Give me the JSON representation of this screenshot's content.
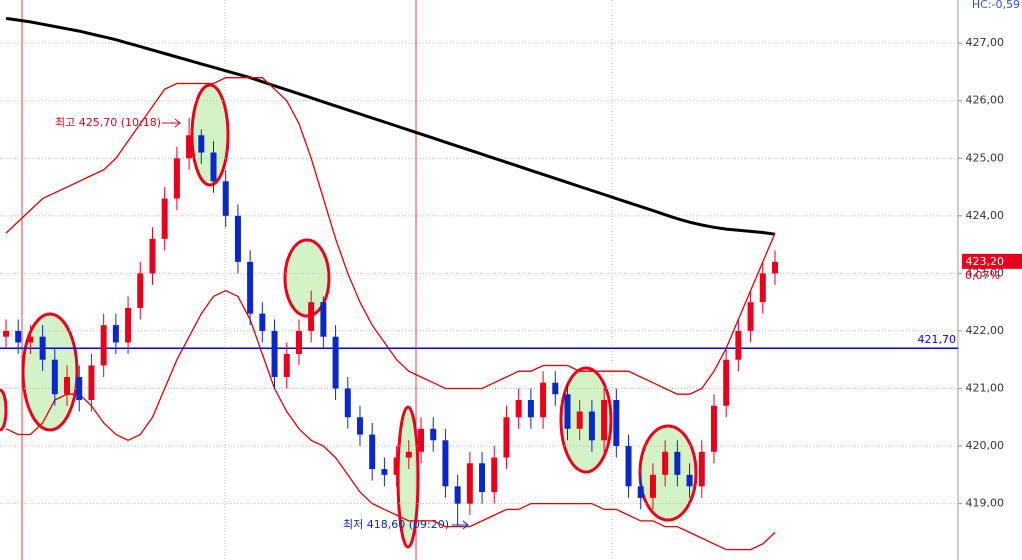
{
  "chart_data": {
    "type": "candlestick",
    "open": [
      421.9,
      422.0,
      421.8,
      421.9,
      421.5,
      420.9,
      421.2,
      420.8,
      421.4,
      422.1,
      421.8,
      422.4,
      423.0,
      423.6,
      424.3,
      425.0,
      425.4,
      425.1,
      424.6,
      424.0,
      423.2,
      422.3,
      422.0,
      421.2,
      421.6,
      422.0,
      422.5,
      421.9,
      421.0,
      420.5,
      420.2,
      419.6,
      419.5,
      419.8,
      419.9,
      420.3,
      420.1,
      419.3,
      419.0,
      419.7,
      419.2,
      419.8,
      420.5,
      420.8,
      420.5,
      421.1,
      420.9,
      420.3,
      420.6,
      420.1,
      420.8,
      420.0,
      419.3,
      419.1,
      419.5,
      419.9,
      419.5,
      419.3,
      419.9,
      420.7,
      421.5,
      422.0,
      422.5,
      423.0
    ],
    "high": [
      422.2,
      422.2,
      422.1,
      422.1,
      421.7,
      421.4,
      421.4,
      421.6,
      422.3,
      422.3,
      422.6,
      423.2,
      423.8,
      424.5,
      425.2,
      425.7,
      425.5,
      425.3,
      424.8,
      424.2,
      423.4,
      422.5,
      422.2,
      421.8,
      422.2,
      422.7,
      422.6,
      422.1,
      421.2,
      420.7,
      420.4,
      419.8,
      420.0,
      420.1,
      420.5,
      420.5,
      420.3,
      419.5,
      419.9,
      419.9,
      420.0,
      420.7,
      421.0,
      421.0,
      421.3,
      421.3,
      421.1,
      420.8,
      420.8,
      421.0,
      421.0,
      420.2,
      419.5,
      419.7,
      420.1,
      420.1,
      419.7,
      420.1,
      420.9,
      421.7,
      422.2,
      422.7,
      423.2,
      423.4
    ],
    "low": [
      421.7,
      421.6,
      421.6,
      421.3,
      420.7,
      420.7,
      420.6,
      420.6,
      421.2,
      421.6,
      421.6,
      422.2,
      422.8,
      423.4,
      424.1,
      424.8,
      424.9,
      424.4,
      423.8,
      423.0,
      422.1,
      421.8,
      421.0,
      421.0,
      421.4,
      421.8,
      421.7,
      420.8,
      420.3,
      420.0,
      419.4,
      419.3,
      419.3,
      419.6,
      419.7,
      419.9,
      419.1,
      418.6,
      418.8,
      419.0,
      419.0,
      419.6,
      420.3,
      420.3,
      420.3,
      420.7,
      420.1,
      420.1,
      419.9,
      419.9,
      419.8,
      419.1,
      418.9,
      418.9,
      419.3,
      419.3,
      419.1,
      419.1,
      419.7,
      420.5,
      421.3,
      421.8,
      422.3,
      422.8
    ],
    "close": [
      422.0,
      421.8,
      421.9,
      421.5,
      420.9,
      421.2,
      420.8,
      421.4,
      422.1,
      421.8,
      422.4,
      423.0,
      423.6,
      424.3,
      425.0,
      425.4,
      425.1,
      424.6,
      424.0,
      423.2,
      422.3,
      422.0,
      421.2,
      421.6,
      422.0,
      422.5,
      421.9,
      421.0,
      420.5,
      420.2,
      419.6,
      419.5,
      419.8,
      419.9,
      420.3,
      420.1,
      419.3,
      419.0,
      419.7,
      419.2,
      419.8,
      420.5,
      420.8,
      420.5,
      421.1,
      420.9,
      420.3,
      420.6,
      420.1,
      420.8,
      420.0,
      419.3,
      419.1,
      419.5,
      419.9,
      419.5,
      419.3,
      419.9,
      420.7,
      421.5,
      422.0,
      422.5,
      423.0,
      423.2
    ],
    "up_color": "#e8001c",
    "down_color": "#0a28c8",
    "lines": [
      {
        "color": "#000000",
        "values": [
          427.43,
          427.4,
          427.37,
          427.33,
          427.29,
          427.25,
          427.21,
          427.16,
          427.11,
          427.06,
          427.0,
          426.94,
          426.88,
          426.82,
          426.76,
          426.7,
          426.64,
          426.58,
          426.52,
          426.46,
          426.4,
          426.33,
          426.26,
          426.19,
          426.12,
          426.05,
          425.98,
          425.91,
          425.84,
          425.77,
          425.7,
          425.63,
          425.56,
          425.49,
          425.42,
          425.35,
          425.28,
          425.21,
          425.14,
          425.07,
          425.0,
          424.93,
          424.86,
          424.79,
          424.72,
          424.65,
          424.58,
          424.51,
          424.44,
          424.37,
          424.3,
          424.23,
          424.16,
          424.09,
          424.02,
          423.95,
          423.89,
          423.84,
          423.8,
          423.77,
          423.75,
          423.73,
          423.71,
          423.68
        ]
      },
      {
        "color": "#e00000",
        "values": [
          423.7,
          423.9,
          424.1,
          424.3,
          424.4,
          424.5,
          424.6,
          424.7,
          424.8,
          425.0,
          425.3,
          425.6,
          425.9,
          426.2,
          426.3,
          426.3,
          426.3,
          426.3,
          426.4,
          426.4,
          426.4,
          426.4,
          426.2,
          426.0,
          425.6,
          425.0,
          424.3,
          423.6,
          423.0,
          422.5,
          422.1,
          421.8,
          421.5,
          421.3,
          421.2,
          421.1,
          421.0,
          421.0,
          421.0,
          421.0,
          421.1,
          421.2,
          421.3,
          421.3,
          421.4,
          421.4,
          421.4,
          421.3,
          421.3,
          421.3,
          421.3,
          421.3,
          421.2,
          421.1,
          421.0,
          420.9,
          420.9,
          421.0,
          421.3,
          421.7,
          422.2,
          422.7,
          423.2,
          423.7
        ]
      },
      {
        "color": "#e00000",
        "values": [
          420.3,
          420.2,
          420.2,
          420.4,
          420.8,
          420.9,
          420.9,
          420.7,
          420.4,
          420.2,
          420.1,
          420.2,
          420.5,
          421.0,
          421.5,
          421.9,
          422.3,
          422.6,
          422.7,
          422.6,
          422.2,
          421.6,
          421.0,
          420.6,
          420.3,
          420.1,
          420.0,
          419.8,
          419.5,
          419.2,
          419.0,
          418.9,
          418.8,
          418.7,
          418.7,
          418.7,
          418.6,
          418.6,
          418.6,
          418.7,
          418.8,
          418.9,
          418.9,
          419.0,
          419.0,
          419.0,
          419.0,
          419.0,
          419.0,
          418.9,
          418.9,
          418.8,
          418.7,
          418.7,
          418.6,
          418.6,
          418.5,
          418.4,
          418.3,
          418.2,
          418.2,
          418.2,
          418.3,
          418.5
        ]
      }
    ],
    "hline": {
      "value": 421.7,
      "label": "421,70",
      "color": "#0000ff"
    },
    "last_price": {
      "value": 423.2,
      "label": "423,20"
    },
    "change": "0,07%",
    "header_label": "HC:-0,59",
    "high_note": "최고 425,70 (10:18)",
    "low_note": "최저 418,60 (09:20)",
    "ylim": [
      418.02,
      427.75
    ],
    "yticks": [
      {
        "value": 419,
        "label": "419,00"
      },
      {
        "value": 420,
        "label": "420,00"
      },
      {
        "value": 421,
        "label": "421,00"
      },
      {
        "value": 422,
        "label": "422,00"
      },
      {
        "value": 423,
        "label": "423,00"
      },
      {
        "value": 424,
        "label": "424,00"
      },
      {
        "value": 425,
        "label": "425,00"
      },
      {
        "value": 426,
        "label": "426,00"
      },
      {
        "value": 427,
        "label": "427,00"
      }
    ],
    "grid": true
  }
}
